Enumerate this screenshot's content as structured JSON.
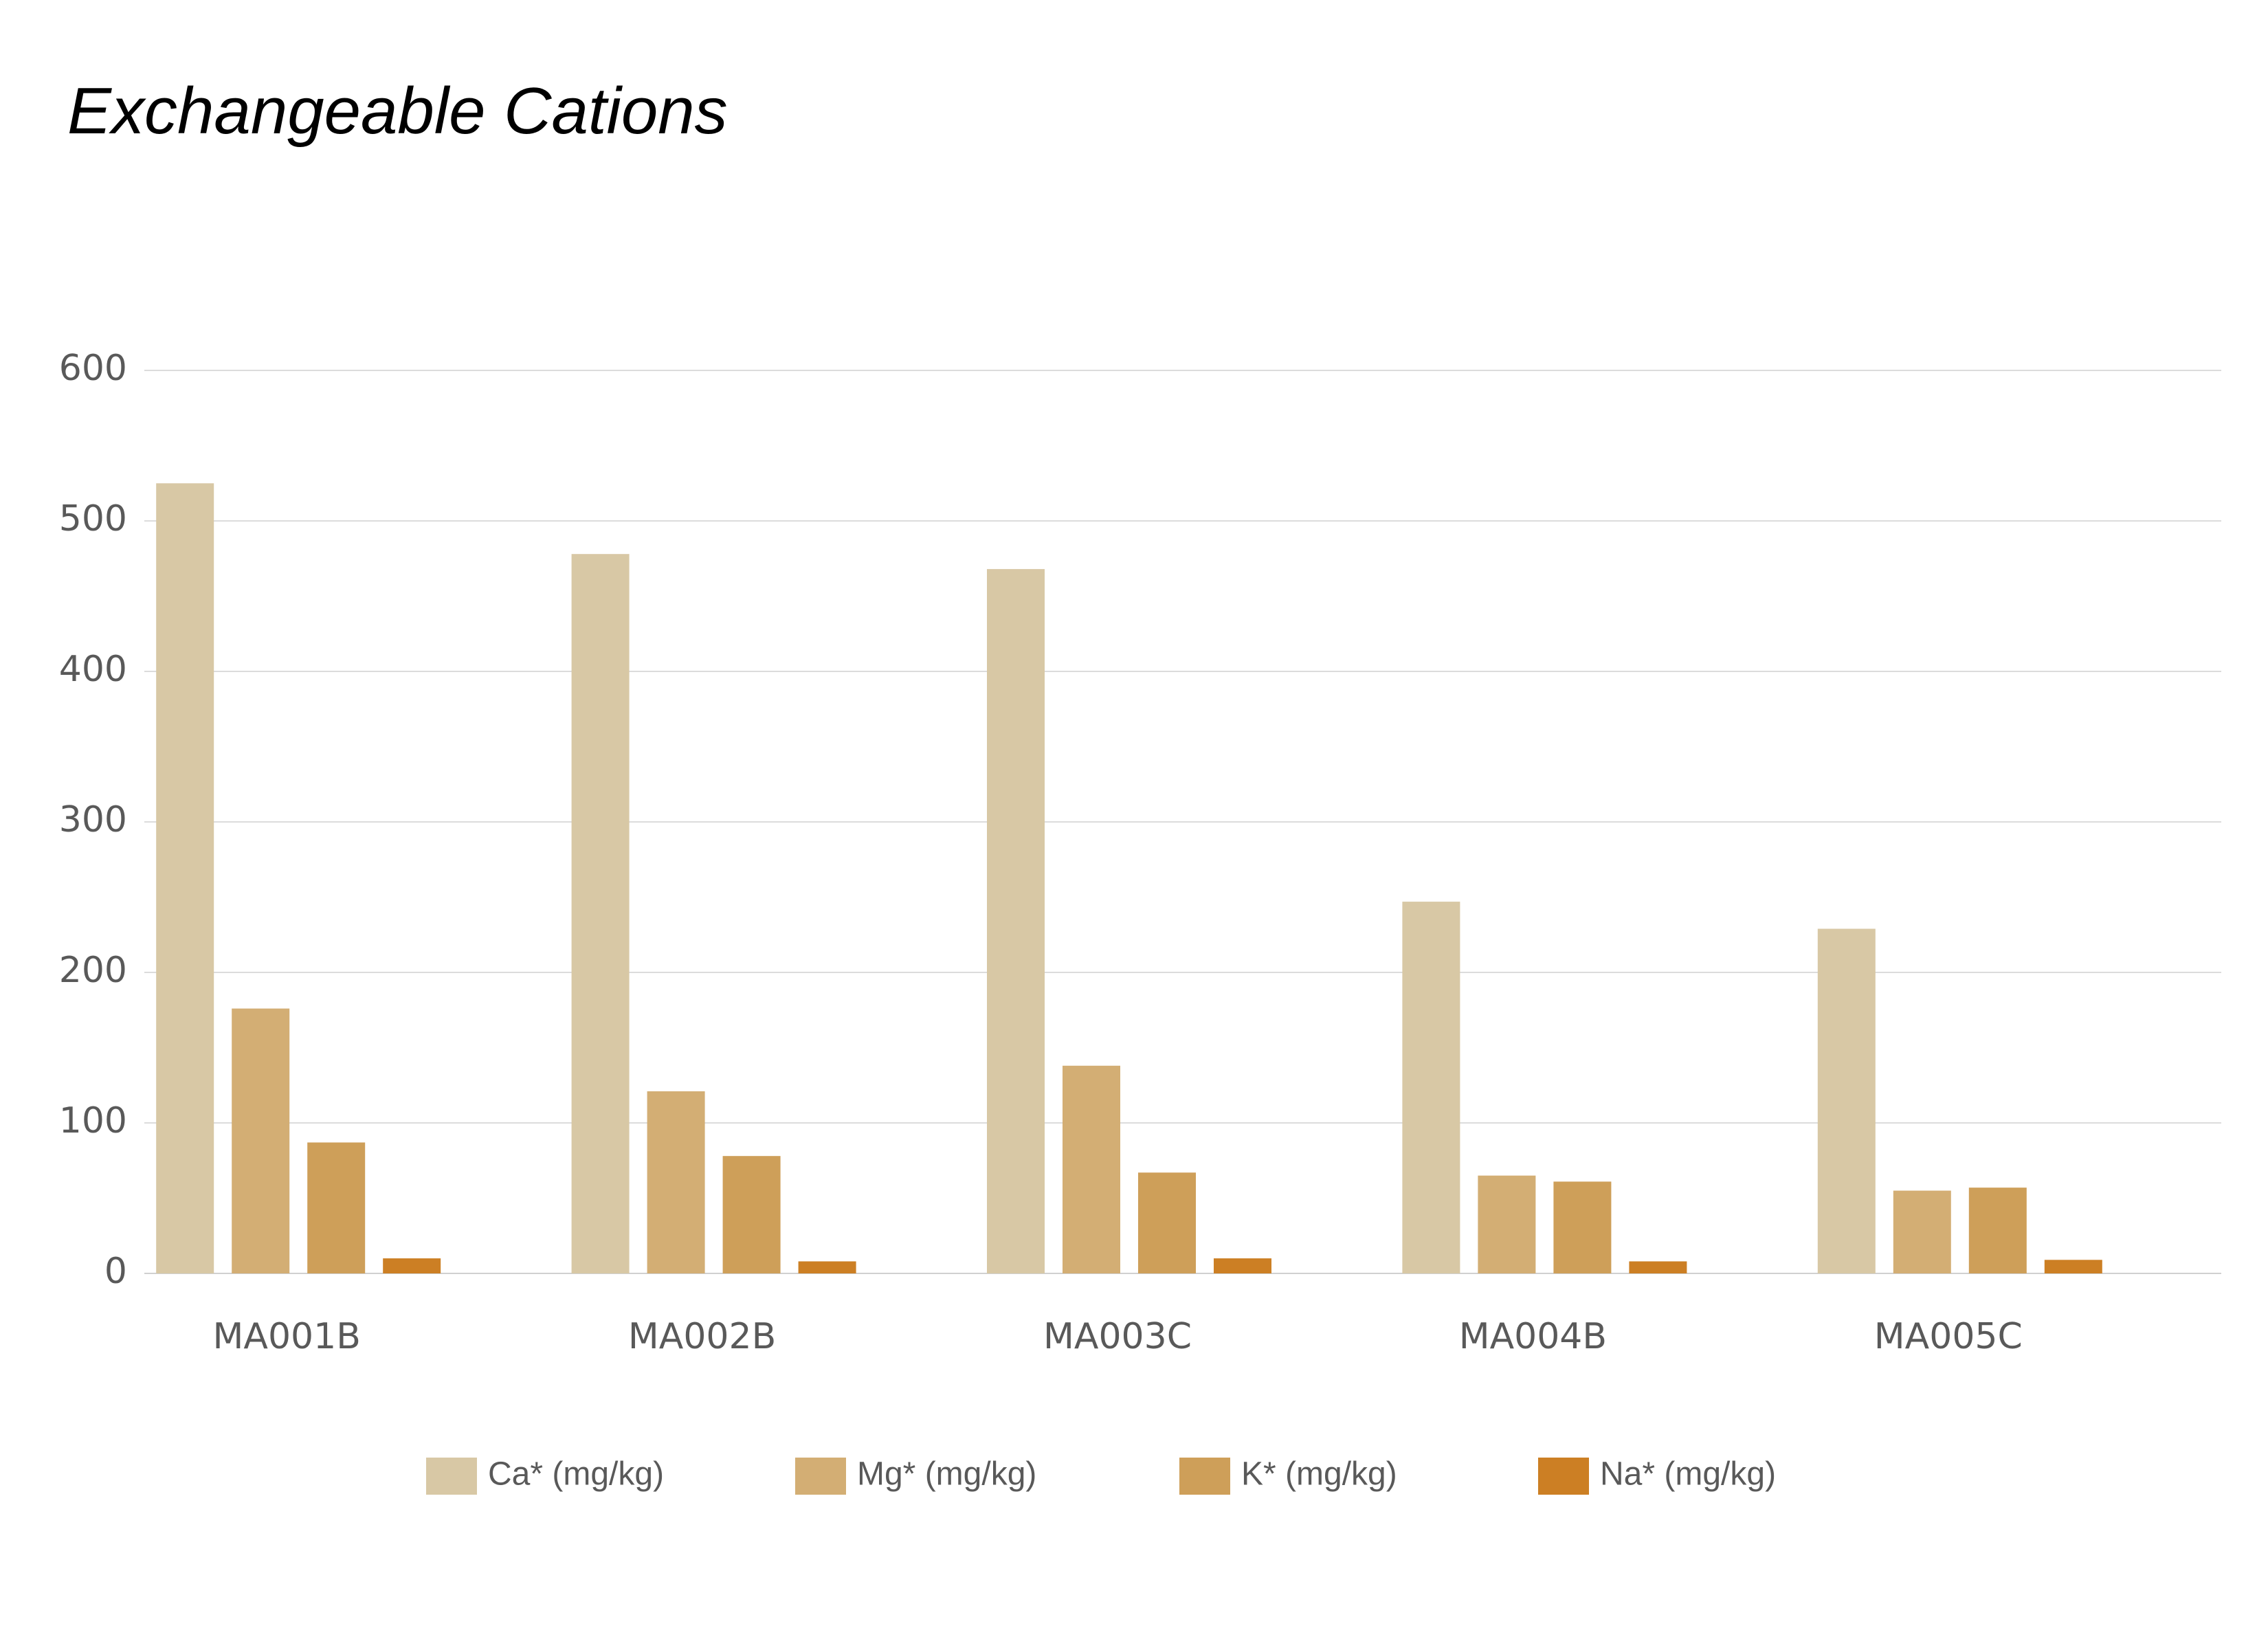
{
  "chart_data": {
    "type": "bar",
    "title": "Exchangeable Cations",
    "xlabel": "",
    "ylabel": "",
    "categories": [
      "MA001B",
      "MA002B",
      "MA003C",
      "MA004B",
      "MA005C"
    ],
    "series": [
      {
        "name": "Ca* (mg/kg)",
        "color": "#D8C8A5",
        "values": [
          525,
          478,
          468,
          247,
          229
        ]
      },
      {
        "name": "Mg* (mg/kg)",
        "color": "#D3AE74",
        "values": [
          176,
          121,
          138,
          65,
          55
        ]
      },
      {
        "name": "K* (mg/kg)",
        "color": "#CE9F59",
        "values": [
          87,
          78,
          67,
          61,
          57
        ]
      },
      {
        "name": "Na* (mg/kg)",
        "color": "#CC7F24",
        "values": [
          10,
          8,
          10,
          8,
          9
        ]
      }
    ],
    "ylim": [
      0,
      600
    ],
    "yticks": [
      0,
      100,
      200,
      300,
      400,
      500,
      600
    ],
    "grid": true,
    "legend_position": "bottom"
  }
}
